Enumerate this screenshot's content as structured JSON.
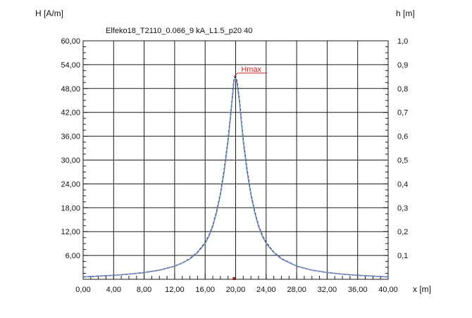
{
  "chart_data": {
    "type": "line",
    "title": "Elfeko18_T2110_0.066_9 kA_L1.5_p20 40",
    "ylabel": "H [A/m]",
    "y2label": "h [m]",
    "xlabel": "x [m]",
    "xlim": [
      0,
      40
    ],
    "ylim": [
      0,
      60
    ],
    "y2lim": [
      0,
      1
    ],
    "grid": true,
    "x_ticks": [
      "0,00",
      "4,00",
      "8,00",
      "12,00",
      "16,00",
      "20,00",
      "24,00",
      "28,00",
      "32,00",
      "36,00",
      "40,00"
    ],
    "y_ticks": [
      "6,00",
      "12,00",
      "18,00",
      "24,00",
      "30,00",
      "36,00",
      "42,00",
      "48,00",
      "54,00",
      "60,00"
    ],
    "y_tick_values": [
      6,
      12,
      18,
      24,
      30,
      36,
      42,
      48,
      54,
      60
    ],
    "y2_ticks": [
      "0,1",
      "0,2",
      "0,3",
      "0,4",
      "0,5",
      "0,6",
      "0,7",
      "0,8",
      "0,9",
      "1,0"
    ],
    "y2_tick_values": [
      0.1,
      0.2,
      0.3,
      0.4,
      0.5,
      0.6,
      0.7,
      0.8,
      0.9,
      1.0
    ],
    "annotation": {
      "label": "Hmax",
      "x": 19.8,
      "y": 51.0
    },
    "series": [
      {
        "color": "#1a1a1a",
        "x": [
          0,
          2,
          4,
          6,
          8,
          10,
          12,
          13,
          14,
          15,
          16,
          16.5,
          17,
          17.5,
          18,
          18.5,
          19,
          19.3,
          19.6,
          19.8,
          20,
          20.2,
          20.5,
          20.8,
          21,
          21.5,
          22,
          22.5,
          23,
          23.5,
          24,
          25,
          26,
          28,
          30,
          32,
          34,
          36,
          38,
          40
        ],
        "y": [
          0.6,
          0.8,
          1.0,
          1.3,
          1.7,
          2.3,
          3.3,
          4.1,
          5.2,
          6.8,
          9.2,
          11.0,
          13.5,
          17.0,
          21.5,
          27.5,
          35.0,
          40.5,
          46.5,
          50.5,
          51.0,
          49.5,
          45.0,
          39.0,
          35.0,
          27.5,
          21.5,
          17.0,
          13.5,
          11.0,
          9.2,
          6.8,
          5.2,
          3.3,
          2.3,
          1.7,
          1.3,
          1.0,
          0.8,
          0.6
        ]
      },
      {
        "color": "#6f88c6",
        "x": [
          0,
          2,
          4,
          6,
          8,
          10,
          12,
          13,
          14,
          15,
          16,
          16.5,
          17,
          17.5,
          18,
          18.5,
          19,
          19.3,
          19.6,
          19.8,
          20,
          20.2,
          20.5,
          20.8,
          21,
          21.5,
          22,
          22.5,
          23,
          23.5,
          24,
          25,
          26,
          28,
          30,
          32,
          34,
          36,
          38,
          40
        ],
        "y": [
          0.6,
          0.8,
          1.0,
          1.3,
          1.7,
          2.3,
          3.3,
          4.1,
          5.1,
          6.7,
          9.0,
          10.8,
          13.3,
          16.7,
          21.2,
          27.0,
          34.5,
          40.0,
          46.0,
          50.0,
          50.5,
          49.0,
          44.5,
          38.5,
          34.5,
          27.0,
          21.2,
          16.7,
          13.3,
          10.8,
          9.0,
          6.7,
          5.1,
          3.3,
          2.3,
          1.7,
          1.3,
          1.0,
          0.8,
          0.6
        ]
      }
    ]
  },
  "colors": {
    "grid": "#1a1a1a",
    "annotation": "#d42020",
    "marker": "#8b1c1c"
  }
}
